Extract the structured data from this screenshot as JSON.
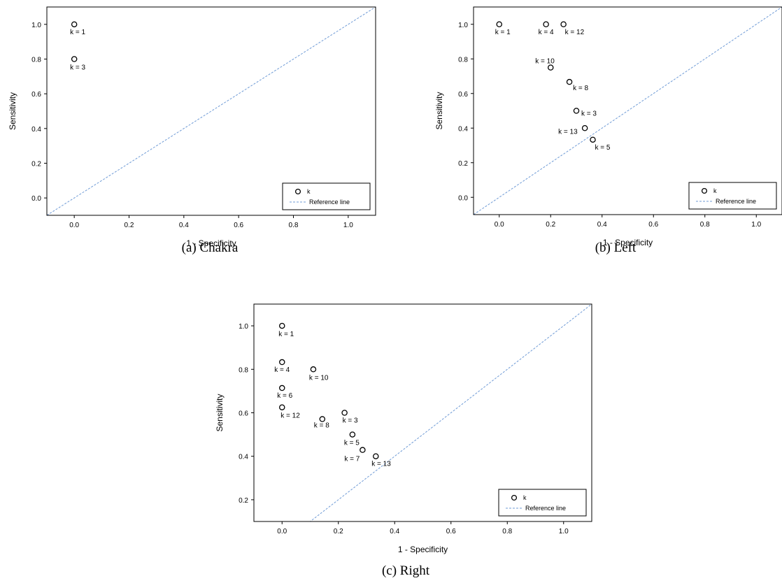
{
  "chart_data": [
    {
      "type": "scatter",
      "caption": "(a) Chakra",
      "xlabel": "1 - Specificity",
      "ylabel": "Sensitivity",
      "xlim": [
        -0.1,
        1.1
      ],
      "ylim": [
        -0.1,
        1.1
      ],
      "xticks": [
        "0.0",
        "0.2",
        "0.4",
        "0.6",
        "0.8",
        "1.0"
      ],
      "yticks": [
        "0.0",
        "0.2",
        "0.4",
        "0.6",
        "0.8",
        "1.0"
      ],
      "legend": {
        "position": "bottom-right",
        "series_label": "k",
        "reference_label": "Reference line"
      },
      "points": [
        {
          "label": "k = 1",
          "x": 0.0,
          "y": 1.0
        },
        {
          "label": "k = 3",
          "x": 0.0,
          "y": 0.8
        }
      ]
    },
    {
      "type": "scatter",
      "caption": "(b) Left",
      "xlabel": "1 - Specificity",
      "ylabel": "Sensitivity",
      "xlim": [
        -0.1,
        1.1
      ],
      "ylim": [
        -0.1,
        1.1
      ],
      "xticks": [
        "0.0",
        "0.2",
        "0.4",
        "0.6",
        "0.8",
        "1.0"
      ],
      "yticks": [
        "0.0",
        "0.2",
        "0.4",
        "0.6",
        "0.8",
        "1.0"
      ],
      "legend": {
        "position": "bottom-right",
        "series_label": "k",
        "reference_label": "Reference line"
      },
      "points": [
        {
          "label": "k = 1",
          "x": 0.0,
          "y": 1.0
        },
        {
          "label": "k = 4",
          "x": 0.182,
          "y": 1.0
        },
        {
          "label": "k = 12",
          "x": 0.25,
          "y": 1.0
        },
        {
          "label": "k = 10",
          "x": 0.2,
          "y": 0.75
        },
        {
          "label": "k = 8",
          "x": 0.273,
          "y": 0.667
        },
        {
          "label": "k = 3",
          "x": 0.3,
          "y": 0.5
        },
        {
          "label": "k = 13",
          "x": 0.333,
          "y": 0.4
        },
        {
          "label": "k = 5",
          "x": 0.364,
          "y": 0.333
        }
      ]
    },
    {
      "type": "scatter",
      "caption": "(c) Right",
      "xlabel": "1 - Specificity",
      "ylabel": "Sensitivity",
      "xlim": [
        -0.1,
        1.1
      ],
      "ylim": [
        0.1,
        1.1
      ],
      "xticks": [
        "0.0",
        "0.2",
        "0.4",
        "0.6",
        "0.8",
        "1.0"
      ],
      "yticks": [
        "0.2",
        "0.4",
        "0.6",
        "0.8",
        "1.0"
      ],
      "legend": {
        "position": "bottom-right",
        "series_label": "k",
        "reference_label": "Reference line"
      },
      "points": [
        {
          "label": "k = 1",
          "x": 0.0,
          "y": 1.0
        },
        {
          "label": "k = 4",
          "x": 0.0,
          "y": 0.833
        },
        {
          "label": "k = 10",
          "x": 0.111,
          "y": 0.8
        },
        {
          "label": "k = 6",
          "x": 0.0,
          "y": 0.714
        },
        {
          "label": "k = 12",
          "x": 0.0,
          "y": 0.625
        },
        {
          "label": "k = 8",
          "x": 0.143,
          "y": 0.571
        },
        {
          "label": "k = 3",
          "x": 0.222,
          "y": 0.6
        },
        {
          "label": "k = 5",
          "x": 0.25,
          "y": 0.5
        },
        {
          "label": "k = 7",
          "x": 0.286,
          "y": 0.429
        },
        {
          "label": "k = 13",
          "x": 0.333,
          "y": 0.4
        }
      ]
    }
  ]
}
